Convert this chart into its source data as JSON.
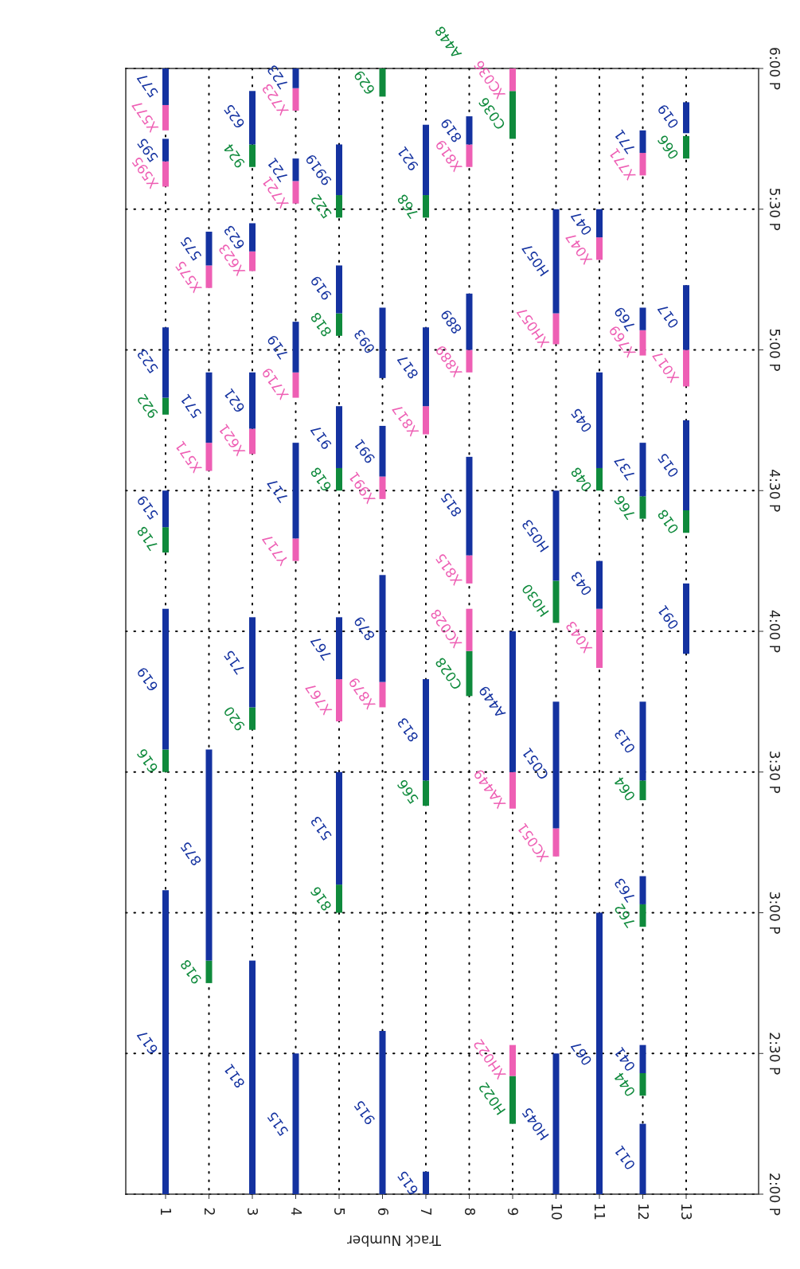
{
  "chart_data": {
    "type": "bar",
    "xlabel": "Track Number",
    "categories": [
      "1",
      "2",
      "3",
      "4",
      "5",
      "6",
      "7",
      "8",
      "9",
      "10",
      "11",
      "12",
      "13"
    ],
    "ylim": [
      14,
      18
    ],
    "yticks": [
      {
        "value": 14,
        "label": "2:00 P"
      },
      {
        "value": 14.5,
        "label": "2:30 P"
      },
      {
        "value": 15,
        "label": "3:00 P"
      },
      {
        "value": 15.5,
        "label": "3:30 P"
      },
      {
        "value": 16,
        "label": "4:00 P"
      },
      {
        "value": 16.5,
        "label": "4:30 P"
      },
      {
        "value": 17,
        "label": "5:00 P"
      },
      {
        "value": 17.5,
        "label": "5:30 P"
      },
      {
        "value": 18,
        "label": "6:00 P"
      }
    ],
    "grid": true,
    "series": [
      {
        "base": [
          14,
          14.75,
          14,
          14,
          15,
          14,
          14,
          15.77,
          14.25,
          14,
          14,
          14,
          15.92
        ],
        "values": [
          1.08,
          0.08,
          0.83,
          0.5,
          0.1,
          0.58,
          0.08,
          0.16,
          0.17,
          0.5,
          1,
          0.25,
          0.25
        ],
        "colors": [
          "#1432a0",
          "#0f8a3c",
          "#1432a0",
          "#1432a0",
          "#0f8a3c",
          "#1432a0",
          "#1432a0",
          "#0f8a3c",
          "#0f8a3c",
          "#1432a0",
          "#1432a0",
          "#1432a0",
          "#1432a0"
        ]
      },
      {
        "base": [
          15.5,
          14.83,
          15.65,
          16.25,
          15.1,
          15.73,
          15.38,
          15.93,
          14.42,
          15.2,
          15.87,
          14.35,
          16.35
        ],
        "values": [
          0.08,
          0.75,
          0.08,
          0.08,
          0.4,
          0.09,
          0.09,
          0.15,
          0.11,
          0.1,
          0.21,
          0.08,
          0.08
        ],
        "colors": [
          "#0f8a3c",
          "#1432a0",
          "#0f8a3c",
          "#ee5fb4",
          "#1432a0",
          "#ee5fb4",
          "#0f8a3c",
          "#ee5fb4",
          "#ee5fb4",
          "#ee5fb4",
          "#ee5fb4",
          "#0f8a3c",
          "#0f8a3c"
        ]
      },
      {
        "base": [
          15.58,
          16.57,
          15.73,
          16.33,
          15.68,
          15.82,
          15.47,
          16.17,
          15.37,
          15.3,
          16.08,
          14.43,
          16.43
        ],
        "values": [
          0.5,
          0.1,
          0.32,
          0.34,
          0.15,
          0.38,
          0.36,
          0.1,
          0.13,
          0.45,
          0.17,
          0.1,
          0.32
        ],
        "colors": [
          "#1432a0",
          "#ee5fb4",
          "#1432a0",
          "#1432a0",
          "#ee5fb4",
          "#1432a0",
          "#1432a0",
          "#ee5fb4",
          "#ee5fb4",
          "#1432a0",
          "#1432a0",
          "#1432a0",
          "#1432a0"
        ]
      },
      {
        "base": [
          16.28,
          16.67,
          16.63,
          16.83,
          15.83,
          16.47,
          16.7,
          16.27,
          15.5,
          16.03,
          16.5,
          14.95,
          16.87
        ],
        "values": [
          0.09,
          0.25,
          0.09,
          0.09,
          0.22,
          0.08,
          0.1,
          0.35,
          0.5,
          0.15,
          0.08,
          0.08,
          0.13
        ],
        "colors": [
          "#0f8a3c",
          "#1432a0",
          "#ee5fb4",
          "#ee5fb4",
          "#1432a0",
          "#ee5fb4",
          "#ee5fb4",
          "#1432a0",
          "#1432a0",
          "#0f8a3c",
          "#0f8a3c",
          "#0f8a3c",
          "#ee5fb4"
        ]
      },
      {
        "base": [
          16.37,
          17.22,
          16.72,
          16.92,
          16.5,
          16.55,
          16.8,
          16.92,
          17.75,
          16.18,
          16.58,
          15.03,
          17
        ],
        "values": [
          0.13,
          0.08,
          0.2,
          0.18,
          0.08,
          0.18,
          0.28,
          0.08,
          0.17,
          0.32,
          0.34,
          0.1,
          0.23
        ],
        "colors": [
          "#1432a0",
          "#ee5fb4",
          "#1432a0",
          "#1432a0",
          "#0f8a3c",
          "#1432a0",
          "#1432a0",
          "#ee5fb4",
          "#0f8a3c",
          "#1432a0",
          "#1432a0",
          "#1432a0",
          "#1432a0"
        ]
      },
      {
        "base": [
          16.77,
          17.3,
          17.28,
          17.52,
          16.58,
          16.9,
          17.47,
          17,
          17.92,
          17.02,
          17.32,
          15.4,
          17.68
        ],
        "values": [
          0.06,
          0.12,
          0.07,
          0.08,
          0.22,
          0.25,
          0.08,
          0.2,
          0.08,
          0.11,
          0.08,
          0.07,
          0.08
        ],
        "colors": [
          "#0f8a3c",
          "#1432a0",
          "#ee5fb4",
          "#ee5fb4",
          "#1432a0",
          "#1432a0",
          "#0f8a3c",
          "#1432a0",
          "#ee5fb4",
          "#ee5fb4",
          "#ee5fb4",
          "#0f8a3c",
          "#0f8a3c"
        ]
      },
      {
        "base": [
          16.83,
          null,
          17.35,
          17.6,
          17.05,
          17.9,
          17.55,
          17.65,
          null,
          17.13,
          17.4,
          15.47,
          17.77
        ],
        "values": [
          0.25,
          null,
          0.1,
          0.08,
          0.08,
          0.1,
          0.25,
          0.08,
          null,
          0.37,
          0.1,
          0.28,
          0.11
        ],
        "colors": [
          "#1432a0",
          null,
          "#1432a0",
          "#1432a0",
          "#0f8a3c",
          "#0f8a3c",
          "#1432a0",
          "#ee5fb4",
          null,
          "#1432a0",
          "#1432a0",
          "#1432a0",
          "#1432a0"
        ]
      },
      {
        "base": [
          17.58,
          null,
          17.65,
          17.85,
          17.13,
          null,
          null,
          17.73,
          null,
          null,
          null,
          16.4,
          null
        ],
        "values": [
          0.09,
          null,
          0.08,
          0.08,
          0.17,
          null,
          null,
          0.1,
          null,
          null,
          null,
          0.08,
          null
        ],
        "colors": [
          "#ee5fb4",
          null,
          "#0f8a3c",
          "#ee5fb4",
          "#1432a0",
          null,
          null,
          "#1432a0",
          null,
          null,
          null,
          "#0f8a3c",
          null
        ]
      },
      {
        "base": [
          17.67,
          null,
          17.73,
          17.93,
          17.47,
          null,
          null,
          null,
          null,
          null,
          null,
          16.48,
          null
        ],
        "values": [
          0.08,
          null,
          0.19,
          0.07,
          0.08,
          null,
          null,
          null,
          null,
          null,
          null,
          0.19,
          null
        ],
        "colors": [
          "#1432a0",
          null,
          "#1432a0",
          "#1432a0",
          "#0f8a3c",
          null,
          null,
          null,
          null,
          null,
          null,
          "#1432a0",
          null
        ]
      },
      {
        "base": [
          17.78,
          null,
          null,
          null,
          17.55,
          null,
          null,
          null,
          null,
          null,
          null,
          16.98,
          null
        ],
        "values": [
          0.09,
          null,
          null,
          null,
          0.18,
          null,
          null,
          null,
          null,
          null,
          null,
          0.09,
          null
        ],
        "colors": [
          "#ee5fb4",
          null,
          null,
          null,
          "#1432a0",
          null,
          null,
          null,
          null,
          null,
          null,
          "#ee5fb4",
          null
        ]
      },
      {
        "base": [
          17.87,
          null,
          null,
          null,
          null,
          null,
          null,
          null,
          null,
          null,
          null,
          17.07,
          null
        ],
        "values": [
          0.13,
          null,
          null,
          null,
          null,
          null,
          null,
          null,
          null,
          null,
          null,
          0.08,
          null
        ],
        "colors": [
          "#1432a0",
          null,
          null,
          null,
          null,
          null,
          null,
          null,
          null,
          null,
          null,
          "#1432a0",
          null
        ]
      },
      {
        "base": [
          null,
          null,
          null,
          null,
          null,
          null,
          null,
          null,
          null,
          null,
          null,
          17.62,
          null
        ],
        "values": [
          null,
          null,
          null,
          null,
          null,
          null,
          null,
          null,
          null,
          null,
          null,
          0.08,
          null
        ],
        "colors": [
          null,
          null,
          null,
          null,
          null,
          null,
          null,
          null,
          null,
          null,
          null,
          "#ee5fb4",
          null
        ]
      },
      {
        "base": [
          null,
          null,
          null,
          null,
          null,
          null,
          null,
          null,
          null,
          null,
          null,
          17.7,
          null
        ],
        "values": [
          null,
          null,
          null,
          null,
          null,
          null,
          null,
          null,
          null,
          null,
          null,
          0.08,
          null
        ],
        "colors": [
          null,
          null,
          null,
          null,
          null,
          null,
          null,
          null,
          null,
          null,
          null,
          "#1432a0",
          null
        ]
      }
    ],
    "annotations": [
      {
        "text": "617",
        "x": "1",
        "y": 14.54
      },
      {
        "text": "616",
        "x": "1",
        "y": 15.54
      },
      {
        "text": "619",
        "x": "1",
        "y": 15.83
      },
      {
        "text": "718",
        "x": "1",
        "y": 16.33
      },
      {
        "text": "519",
        "x": "1",
        "y": 16.44
      },
      {
        "text": "922",
        "x": "1",
        "y": 16.8
      },
      {
        "text": "523",
        "x": "1",
        "y": 16.96
      },
      {
        "text": "X595",
        "x": "1",
        "y": 17.63
      },
      {
        "text": "595",
        "x": "1",
        "y": 17.71
      },
      {
        "text": "X577",
        "x": "1",
        "y": 17.83
      },
      {
        "text": "577",
        "x": "1",
        "y": 17.94
      },
      {
        "text": "918",
        "x": "2",
        "y": 14.79
      },
      {
        "text": "875",
        "x": "2",
        "y": 15.21
      },
      {
        "text": "X571",
        "x": "2",
        "y": 16.62
      },
      {
        "text": "571",
        "x": "2",
        "y": 16.8
      },
      {
        "text": "X575",
        "x": "2",
        "y": 17.26
      },
      {
        "text": "575",
        "x": "2",
        "y": 17.36
      },
      {
        "text": "811",
        "x": "3",
        "y": 14.42
      },
      {
        "text": "920",
        "x": "3",
        "y": 15.69
      },
      {
        "text": "715",
        "x": "3",
        "y": 15.89
      },
      {
        "text": "X621",
        "x": "3",
        "y": 16.68
      },
      {
        "text": "621",
        "x": "3",
        "y": 16.82
      },
      {
        "text": "X623",
        "x": "3",
        "y": 17.32
      },
      {
        "text": "623",
        "x": "3",
        "y": 17.4
      },
      {
        "text": "924",
        "x": "3",
        "y": 17.69
      },
      {
        "text": "625",
        "x": "3",
        "y": 17.83
      },
      {
        "text": "515",
        "x": "4",
        "y": 14.25
      },
      {
        "text": "Y717",
        "x": "4",
        "y": 16.29
      },
      {
        "text": "717",
        "x": "4",
        "y": 16.5
      },
      {
        "text": "X719",
        "x": "4",
        "y": 16.88
      },
      {
        "text": "719",
        "x": "4",
        "y": 17.01
      },
      {
        "text": "X721",
        "x": "4",
        "y": 17.56
      },
      {
        "text": "721",
        "x": "4",
        "y": 17.64
      },
      {
        "text": "X723",
        "x": "4",
        "y": 17.89
      },
      {
        "text": "723",
        "x": "4",
        "y": 17.97
      },
      {
        "text": "816",
        "x": "5",
        "y": 15.05
      },
      {
        "text": "513",
        "x": "5",
        "y": 15.3
      },
      {
        "text": "X767",
        "x": "5",
        "y": 15.76
      },
      {
        "text": "767",
        "x": "5",
        "y": 15.94
      },
      {
        "text": "618",
        "x": "5",
        "y": 16.54
      },
      {
        "text": "917",
        "x": "5",
        "y": 16.69
      },
      {
        "text": "818",
        "x": "5",
        "y": 17.09
      },
      {
        "text": "919",
        "x": "5",
        "y": 17.22
      },
      {
        "text": "522",
        "x": "5",
        "y": 17.51
      },
      {
        "text": "9919",
        "x": "5",
        "y": 17.64
      },
      {
        "text": "915",
        "x": "6",
        "y": 14.29
      },
      {
        "text": "X879",
        "x": "6",
        "y": 15.78
      },
      {
        "text": "879",
        "x": "6",
        "y": 16.01
      },
      {
        "text": "X991",
        "x": "6",
        "y": 16.51
      },
      {
        "text": "991",
        "x": "6",
        "y": 16.64
      },
      {
        "text": "093",
        "x": "6",
        "y": 17.03
      },
      {
        "text": "629",
        "x": "6",
        "y": 17.95
      },
      {
        "text": "615",
        "x": "7",
        "y": 14.04
      },
      {
        "text": "566",
        "x": "7",
        "y": 15.43
      },
      {
        "text": "813",
        "x": "7",
        "y": 15.65
      },
      {
        "text": "X817",
        "x": "7",
        "y": 16.75
      },
      {
        "text": "817",
        "x": "7",
        "y": 16.94
      },
      {
        "text": "768",
        "x": "7",
        "y": 17.51
      },
      {
        "text": "921",
        "x": "7",
        "y": 17.68
      },
      {
        "text": "C028",
        "x": "8",
        "y": 15.85
      },
      {
        "text": "XC028",
        "x": "8",
        "y": 16.01
      },
      {
        "text": "X815",
        "x": "8",
        "y": 16.22
      },
      {
        "text": "815",
        "x": "8",
        "y": 16.45
      },
      {
        "text": "X889",
        "x": "8",
        "y": 16.96
      },
      {
        "text": "889",
        "x": "8",
        "y": 17.1
      },
      {
        "text": "X819",
        "x": "8",
        "y": 17.69
      },
      {
        "text": "819",
        "x": "8",
        "y": 17.78
      },
      {
        "text": "H022",
        "x": "9",
        "y": 14.34
      },
      {
        "text": "XH022",
        "x": "9",
        "y": 14.48
      },
      {
        "text": "XA449",
        "x": "9",
        "y": 15.44
      },
      {
        "text": "A449",
        "x": "9",
        "y": 15.75
      },
      {
        "text": "C036",
        "x": "9",
        "y": 17.84
      },
      {
        "text": "XC036",
        "x": "9",
        "y": 17.96
      },
      "A448",
      {
        "text": "H045",
        "x": "10",
        "y": 14.25
      },
      {
        "text": "XC051",
        "x": "10",
        "y": 15.25
      },
      {
        "text": "C051",
        "x": "10",
        "y": 15.53
      },
      {
        "text": "H030",
        "x": "10",
        "y": 16.11
      },
      {
        "text": "H053",
        "x": "10",
        "y": 16.34
      },
      {
        "text": "XH057",
        "x": "10",
        "y": 17.08
      },
      {
        "text": "H057",
        "x": "10",
        "y": 17.32
      },
      {
        "text": "067",
        "x": "11",
        "y": 14.5
      },
      {
        "text": "X043",
        "x": "11",
        "y": 15.98
      },
      {
        "text": "043",
        "x": "11",
        "y": 16.17
      },
      {
        "text": "048",
        "x": "11",
        "y": 16.54
      },
      {
        "text": "045",
        "x": "11",
        "y": 16.75
      },
      {
        "text": "X047",
        "x": "11",
        "y": 17.36
      },
      {
        "text": "047",
        "x": "11",
        "y": 17.45
      },
      {
        "text": "011",
        "x": "12",
        "y": 14.13
      },
      {
        "text": "044",
        "x": "12",
        "y": 14.39
      },
      {
        "text": "041",
        "x": "12",
        "y": 14.48
      },
      {
        "text": "762",
        "x": "12",
        "y": 14.99
      },
      {
        "text": "763",
        "x": "12",
        "y": 15.08
      },
      {
        "text": "064",
        "x": "12",
        "y": 15.44
      },
      {
        "text": "013",
        "x": "12",
        "y": 15.61
      },
      {
        "text": "766",
        "x": "12",
        "y": 16.44
      },
      {
        "text": "737",
        "x": "12",
        "y": 16.58
      },
      {
        "text": "X769",
        "x": "12",
        "y": 17.03
      },
      {
        "text": "769",
        "x": "12",
        "y": 17.11
      },
      {
        "text": "X771",
        "x": "12",
        "y": 17.66
      },
      {
        "text": "771",
        "x": "12",
        "y": 17.74
      },
      {
        "text": "091",
        "x": "13",
        "y": 16.05
      },
      {
        "text": "018",
        "x": "13",
        "y": 16.39
      },
      {
        "text": "015",
        "x": "13",
        "y": 16.59
      },
      {
        "text": "X017",
        "x": "13",
        "y": 16.94
      },
      {
        "text": "017",
        "x": "13",
        "y": 17.12
      },
      {
        "text": "066",
        "x": "13",
        "y": 17.72
      },
      {
        "text": "019",
        "x": "13",
        "y": 17.83
      }
    ]
  }
}
